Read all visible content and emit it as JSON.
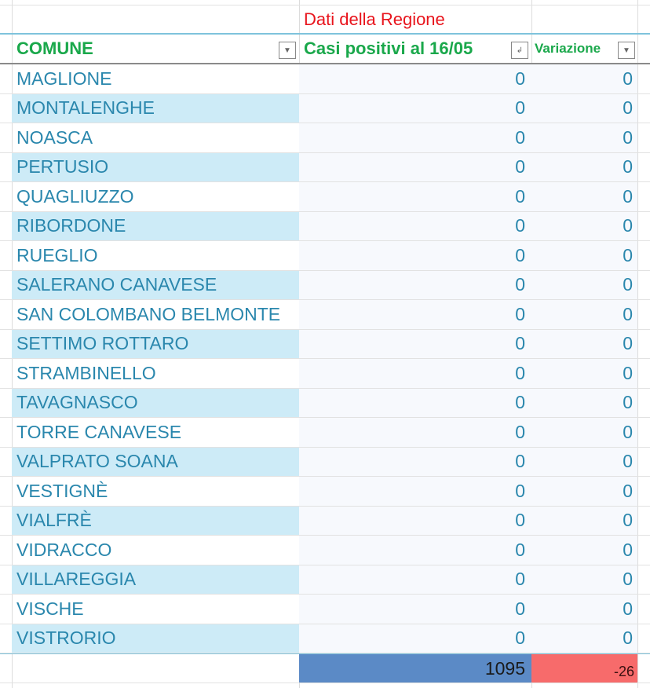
{
  "header": {
    "region_title": "Dati della Regione",
    "col_comune": "COMUNE",
    "col_casi": "Casi positivi al 16/05",
    "col_variazione": "Variazione"
  },
  "rows": [
    {
      "comune": "MAGLIONE",
      "casi": "0",
      "variazione": "0"
    },
    {
      "comune": "MONTALENGHE",
      "casi": "0",
      "variazione": "0"
    },
    {
      "comune": "NOASCA",
      "casi": "0",
      "variazione": "0"
    },
    {
      "comune": "PERTUSIO",
      "casi": "0",
      "variazione": "0"
    },
    {
      "comune": "QUAGLIUZZO",
      "casi": "0",
      "variazione": "0"
    },
    {
      "comune": "RIBORDONE",
      "casi": "0",
      "variazione": "0"
    },
    {
      "comune": "RUEGLIO",
      "casi": "0",
      "variazione": "0"
    },
    {
      "comune": "SALERANO CANAVESE",
      "casi": "0",
      "variazione": "0"
    },
    {
      "comune": "SAN COLOMBANO BELMONTE",
      "casi": "0",
      "variazione": "0"
    },
    {
      "comune": "SETTIMO ROTTARO",
      "casi": "0",
      "variazione": "0"
    },
    {
      "comune": "STRAMBINELLO",
      "casi": "0",
      "variazione": "0"
    },
    {
      "comune": "TAVAGNASCO",
      "casi": "0",
      "variazione": "0"
    },
    {
      "comune": "TORRE CANAVESE",
      "casi": "0",
      "variazione": "0"
    },
    {
      "comune": "VALPRATO SOANA",
      "casi": "0",
      "variazione": "0"
    },
    {
      "comune": "VESTIGNÈ",
      "casi": "0",
      "variazione": "0"
    },
    {
      "comune": "VIALFRÈ",
      "casi": "0",
      "variazione": "0"
    },
    {
      "comune": "VIDRACCO",
      "casi": "0",
      "variazione": "0"
    },
    {
      "comune": "VILLAREGGIA",
      "casi": "0",
      "variazione": "0"
    },
    {
      "comune": "VISCHE",
      "casi": "0",
      "variazione": "0"
    },
    {
      "comune": "VISTRORIO",
      "casi": "0",
      "variazione": "0"
    }
  ],
  "totals": {
    "casi": "1095",
    "variazione": "-26"
  },
  "colors": {
    "region_title": "#e8141c",
    "header_green": "#1aa84b",
    "text_blue": "#2a87ad",
    "total_casi_bg": "#5b8ac6",
    "total_var_bg": "#f76b6b"
  }
}
